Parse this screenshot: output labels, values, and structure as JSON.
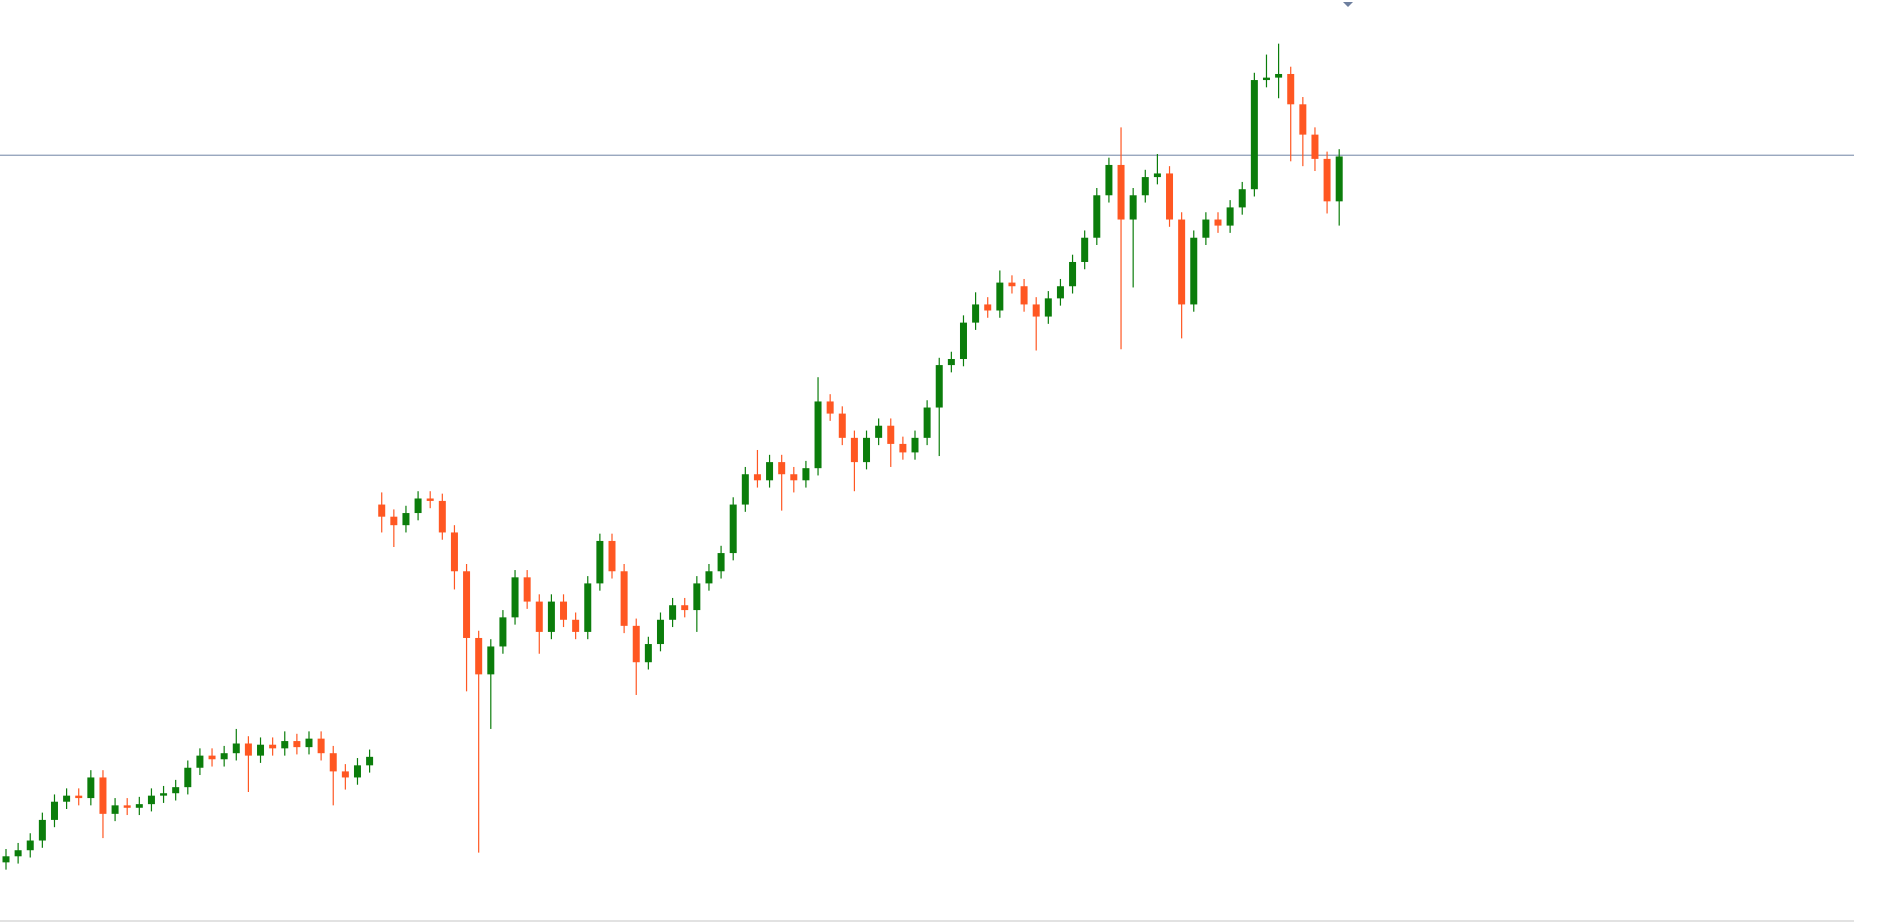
{
  "chart_data": {
    "type": "candlestick",
    "ylim": [
      0,
      761
    ],
    "up_color": "#0b7d0b",
    "down_color": "#ff5722",
    "reference_line": {
      "value": 633,
      "color": "#8b9bb6"
    },
    "open": [
      50,
      55,
      60,
      68,
      85,
      100,
      105,
      103,
      120,
      90,
      97,
      95,
      98,
      105,
      107,
      112,
      128,
      138,
      135,
      140,
      148,
      138,
      147,
      144,
      150,
      145,
      152,
      140,
      125,
      120,
      130,
      345,
      335,
      328,
      338,
      350,
      348,
      322,
      290,
      235,
      205,
      228,
      252,
      285,
      265,
      240,
      265,
      250,
      240,
      280,
      315,
      290,
      245,
      215,
      230,
      250,
      262,
      258,
      280,
      290,
      305,
      345,
      370,
      365,
      380,
      370,
      365,
      375,
      430,
      420,
      400,
      380,
      400,
      410,
      395,
      388,
      400,
      425,
      460,
      465,
      495,
      510,
      505,
      528,
      525,
      510,
      500,
      515,
      525,
      545,
      565,
      600,
      625,
      580,
      600,
      615,
      618,
      580,
      510,
      565,
      580,
      575,
      590,
      605,
      695,
      697,
      700,
      675,
      650,
      630,
      595
    ],
    "high": [
      61,
      66,
      74,
      91,
      106,
      111,
      111,
      126,
      126,
      103,
      103,
      104,
      111,
      113,
      118,
      134,
      144,
      144,
      146,
      160,
      154,
      153,
      153,
      158,
      156,
      158,
      158,
      146,
      131,
      136,
      143,
      355,
      341,
      344,
      356,
      356,
      354,
      328,
      296,
      241,
      234,
      258,
      291,
      291,
      271,
      271,
      271,
      256,
      286,
      321,
      321,
      296,
      251,
      236,
      256,
      268,
      268,
      286,
      296,
      311,
      351,
      376,
      390,
      386,
      386,
      376,
      381,
      450,
      436,
      426,
      406,
      406,
      416,
      416,
      401,
      406,
      431,
      466,
      471,
      501,
      520,
      516,
      538,
      534,
      531,
      516,
      521,
      531,
      551,
      571,
      606,
      631,
      656,
      606,
      621,
      634,
      624,
      586,
      571,
      586,
      586,
      596,
      611,
      701,
      716,
      725,
      706,
      681,
      656,
      636,
      638
    ],
    "low": [
      44,
      49,
      54,
      62,
      79,
      94,
      97,
      97,
      70,
      84,
      89,
      89,
      92,
      99,
      101,
      106,
      122,
      129,
      129,
      134,
      108,
      132,
      138,
      138,
      139,
      139,
      134,
      97,
      110,
      114,
      124,
      322,
      310,
      322,
      332,
      342,
      316,
      275,
      191,
      58,
      160,
      222,
      246,
      259,
      222,
      234,
      244,
      234,
      234,
      274,
      284,
      239,
      188,
      209,
      224,
      244,
      252,
      240,
      274,
      284,
      299,
      339,
      359,
      359,
      340,
      355,
      359,
      369,
      414,
      394,
      356,
      374,
      394,
      376,
      382,
      382,
      394,
      385,
      454,
      459,
      489,
      499,
      499,
      519,
      504,
      472,
      494,
      509,
      519,
      539,
      559,
      594,
      473,
      524,
      594,
      609,
      574,
      482,
      504,
      559,
      569,
      569,
      584,
      599,
      689,
      680,
      628,
      624,
      620,
      585,
      575
    ],
    "close": [
      55,
      60,
      68,
      85,
      100,
      105,
      103,
      120,
      90,
      97,
      95,
      98,
      105,
      107,
      112,
      128,
      138,
      135,
      140,
      148,
      138,
      147,
      144,
      150,
      145,
      152,
      140,
      125,
      120,
      130,
      137,
      335,
      328,
      338,
      350,
      348,
      322,
      290,
      235,
      205,
      228,
      252,
      285,
      265,
      240,
      265,
      250,
      240,
      280,
      315,
      290,
      245,
      215,
      230,
      250,
      262,
      258,
      280,
      290,
      305,
      345,
      370,
      365,
      380,
      370,
      365,
      375,
      430,
      420,
      400,
      380,
      400,
      410,
      395,
      388,
      400,
      425,
      460,
      465,
      495,
      510,
      505,
      528,
      525,
      510,
      500,
      515,
      525,
      545,
      565,
      600,
      625,
      580,
      600,
      615,
      618,
      580,
      510,
      565,
      580,
      575,
      590,
      605,
      695,
      697,
      700,
      675,
      650,
      630,
      595,
      632
    ]
  }
}
